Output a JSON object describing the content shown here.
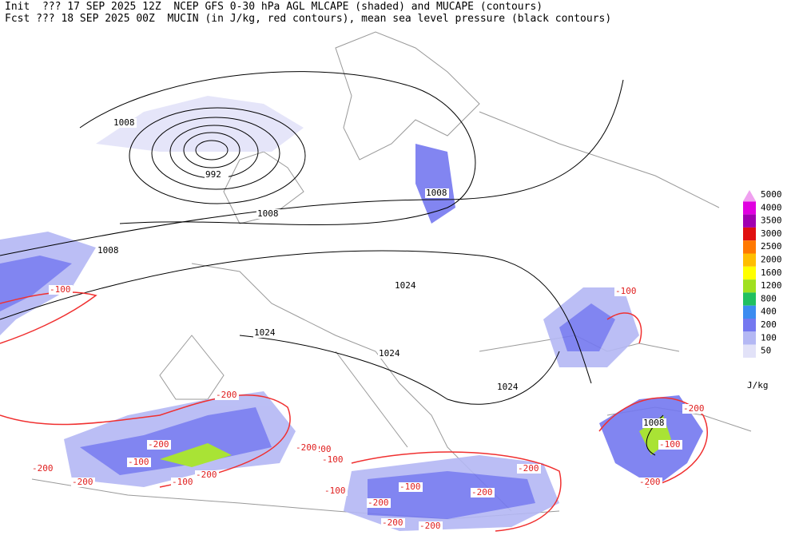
{
  "header": {
    "line1": "Init  ??? 17 SEP 2025 12Z  NCEP GFS 0-30 hPa AGL MLCAPE (shaded) and MUCAPE (contours)",
    "line2": "Fcst ??? 18 SEP 2025 00Z  MUCIN (in J/kg, red contours), mean sea level pressure (black contours)"
  },
  "legend": {
    "unit": "J/kg",
    "levels": [
      {
        "label": "5000",
        "color": "#f0a0f0"
      },
      {
        "label": "4000",
        "color": "#e000e0"
      },
      {
        "label": "3500",
        "color": "#a000b0"
      },
      {
        "label": "3000",
        "color": "#e01010"
      },
      {
        "label": "2500",
        "color": "#ff7800"
      },
      {
        "label": "2000",
        "color": "#ffbe00"
      },
      {
        "label": "1600",
        "color": "#ffff00"
      },
      {
        "label": "1200",
        "color": "#a0e020"
      },
      {
        "label": "800",
        "color": "#20c060"
      },
      {
        "label": "400",
        "color": "#3c8cf0"
      },
      {
        "label": "200",
        "color": "#7478f0"
      },
      {
        "label": "100",
        "color": "#b4b8f4"
      },
      {
        "label": "50",
        "color": "#e2e2f8"
      }
    ]
  },
  "map": {
    "isobar_labels": [
      "1008",
      "992",
      "1008",
      "1008",
      "1008",
      "1024",
      "1024",
      "1024",
      "1024",
      "1008"
    ],
    "mucin_labels": [
      "-100",
      "-100",
      "-200",
      "-200",
      "-200",
      "-100",
      "-200",
      "-200",
      "-100",
      "-200",
      "-100",
      "-200",
      "-200",
      "-200",
      "-100",
      "-200",
      "-200",
      "-100",
      "-200",
      "-100",
      "-200",
      "-200"
    ]
  }
}
